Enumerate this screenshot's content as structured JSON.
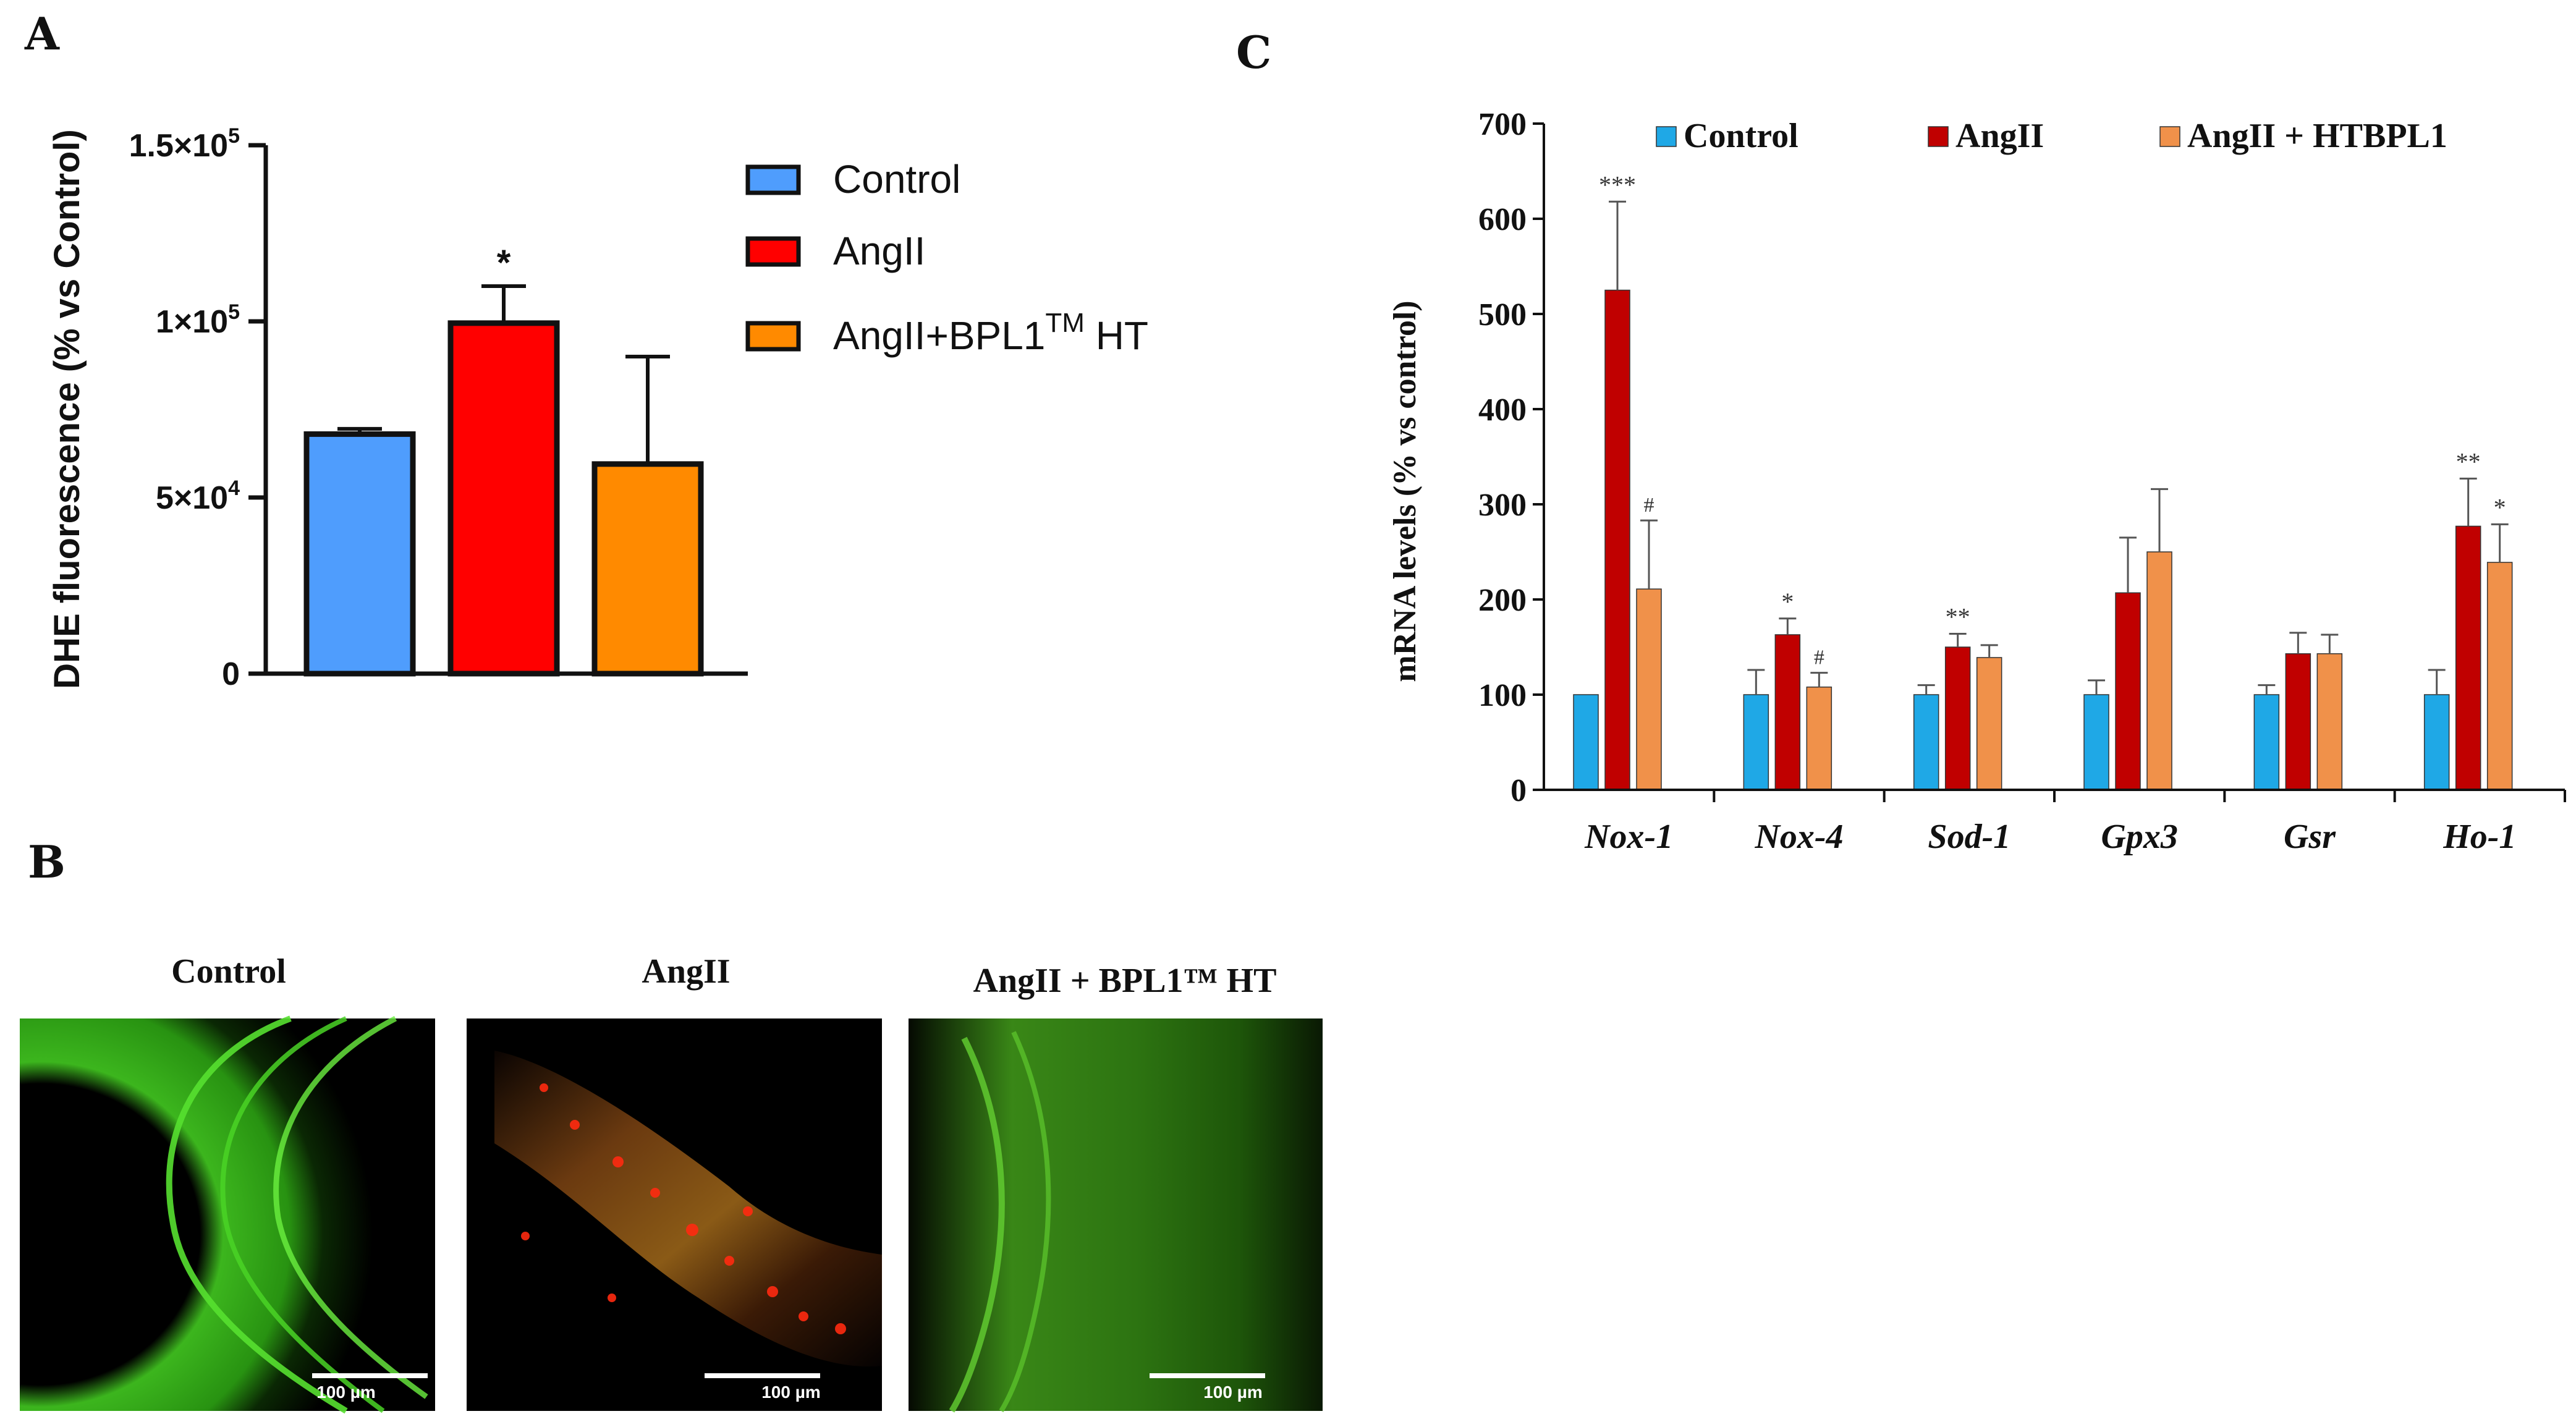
{
  "panels": {
    "a_letter": "A",
    "b_letter": "B",
    "c_letter": "C"
  },
  "colors": {
    "control_a": "#4f9dfd",
    "angii_a": "#ff0000",
    "angii_bpl1_a": "#ff8a00",
    "control_c": "#1fa8e6",
    "angii_c": "#c00000",
    "angii_bpl1_c": "#f0914a"
  },
  "chart_data": [
    {
      "id": "panel-a",
      "type": "bar",
      "title": "",
      "ylabel": "DHE fluorescence (% vs Control)",
      "xlabel": "",
      "ylim": [
        0,
        150000
      ],
      "yticks": [
        {
          "value": 0,
          "label": "0"
        },
        {
          "value": 50000,
          "label": "5×10",
          "exp": "4"
        },
        {
          "value": 100000,
          "label": "1×10",
          "exp": "5"
        },
        {
          "value": 150000,
          "label": "1.5×10",
          "exp": "5"
        }
      ],
      "categories": [
        "Control",
        "AngII",
        "AngII+BPL1TM HT"
      ],
      "values": [
        68000,
        99500,
        59500
      ],
      "errors": [
        1500,
        10500,
        30500
      ],
      "annotations": [
        "",
        "*",
        ""
      ],
      "legend": [
        {
          "label": "Control",
          "color": "#4f9dfd"
        },
        {
          "label": "AngII",
          "color": "#ff0000"
        },
        {
          "label": "AngII+BPL1",
          "sup": "TM",
          "suffix": " HT",
          "color": "#ff8a00"
        }
      ]
    },
    {
      "id": "panel-c",
      "type": "bar",
      "title": "",
      "ylabel": "mRNA levels (% vs control)",
      "xlabel": "",
      "ylim": [
        0,
        700
      ],
      "yticks": [
        0,
        100,
        200,
        300,
        400,
        500,
        600,
        700
      ],
      "categories": [
        "Nox-1",
        "Nox-4",
        "Sod-1",
        "Gpx3",
        "Gsr",
        "Ho-1"
      ],
      "series": [
        {
          "name": "Control",
          "color": "#1fa8e6",
          "values": [
            100,
            100,
            100,
            100,
            100,
            100
          ],
          "errors": [
            0,
            26,
            10,
            15,
            10,
            26
          ],
          "annotations": [
            "",
            "",
            "",
            "",
            "",
            ""
          ]
        },
        {
          "name": "AngII",
          "color": "#c00000",
          "values": [
            525,
            163,
            150,
            207,
            143,
            277
          ],
          "errors": [
            93,
            17,
            14,
            58,
            22,
            50
          ],
          "annotations": [
            "***",
            "*",
            "**",
            "",
            "",
            "**"
          ]
        },
        {
          "name": "AngII + HTBPL1",
          "color": "#f0914a",
          "values": [
            211,
            108,
            139,
            250,
            143,
            239
          ],
          "errors": [
            72,
            15,
            13,
            66,
            20,
            40
          ],
          "annotations": [
            "#",
            "#",
            "",
            "",
            "",
            "*"
          ]
        }
      ],
      "legend_position": "top"
    }
  ],
  "micrographs": [
    {
      "title": "Control",
      "scale_label": "100 µm"
    },
    {
      "title": "AngII",
      "scale_label": "100 µm"
    },
    {
      "title": "AngII + BPL1™ HT",
      "scale_label": "100 µm"
    }
  ]
}
